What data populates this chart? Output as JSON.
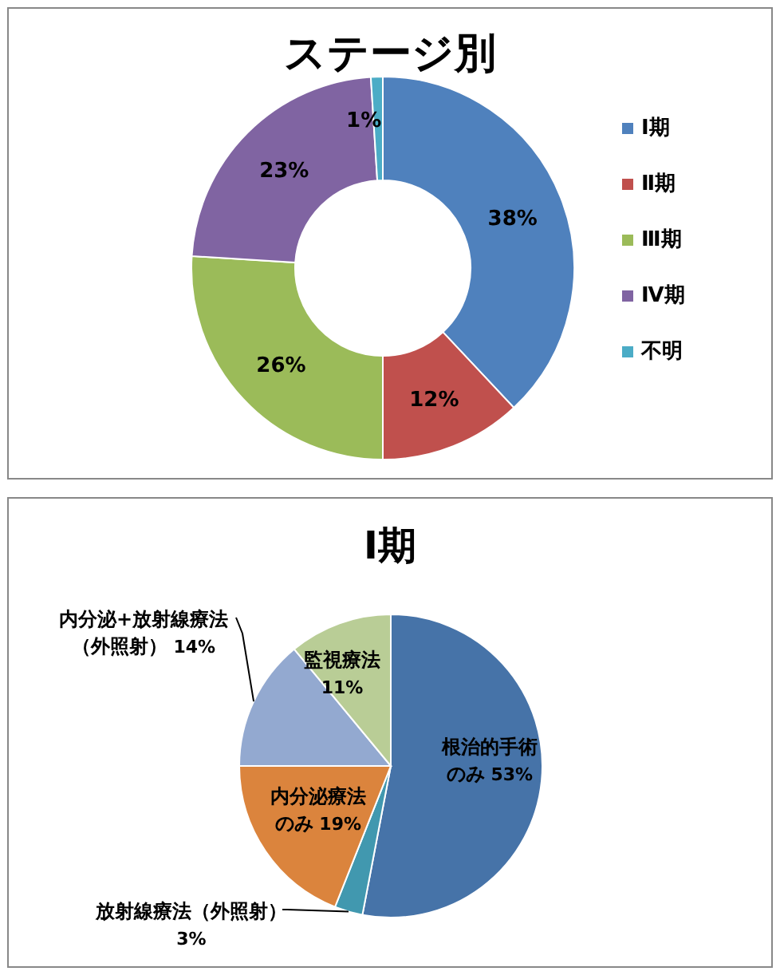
{
  "chart_data": [
    {
      "type": "donut",
      "title": "ステージ別",
      "categories": [
        "Ⅰ期",
        "Ⅱ期",
        "Ⅲ期",
        "Ⅳ期",
        "不明"
      ],
      "values": [
        38,
        12,
        26,
        23,
        1
      ],
      "value_labels": [
        "38%",
        "12%",
        "26%",
        "23%",
        "1%"
      ],
      "colors": [
        "#4f81bd",
        "#c0504d",
        "#9bbb59",
        "#8064a2",
        "#4bacc6"
      ],
      "legend": "right"
    },
    {
      "type": "pie",
      "title": "Ⅰ期",
      "categories": [
        "根治的手術のみ",
        "放射線療法（外照射）",
        "内分泌療法のみ",
        "内分泌+放射線療法（外照射）",
        "監視療法"
      ],
      "values": [
        53,
        3,
        19,
        14,
        11
      ],
      "value_labels": [
        "53%",
        "3%",
        "19%",
        "14%",
        "11%"
      ],
      "colors": [
        "#4673a8",
        "#4198af",
        "#db843d",
        "#93a9d0",
        "#b9cd96"
      ],
      "legend": false
    }
  ]
}
